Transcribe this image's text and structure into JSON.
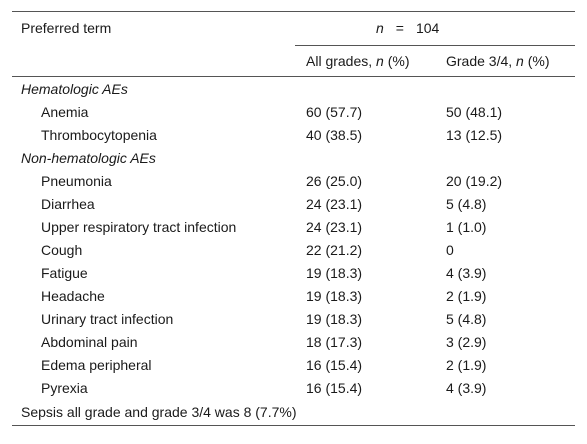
{
  "header": {
    "term_label": "Preferred term",
    "n_symbol": "n",
    "n_eq": "=",
    "n_value": "104",
    "col_all": "All grades, n (%)",
    "col_g34": "Grade 3/4, n (%)"
  },
  "sections": [
    {
      "title": "Hematologic AEs",
      "rows": [
        {
          "term": "Anemia",
          "all": "60 (57.7)",
          "g34": "50 (48.1)"
        },
        {
          "term": "Thrombocytopenia",
          "all": "40 (38.5)",
          "g34": "13 (12.5)"
        }
      ]
    },
    {
      "title": "Non-hematologic AEs",
      "rows": [
        {
          "term": "Pneumonia",
          "all": "26 (25.0)",
          "g34": "20 (19.2)"
        },
        {
          "term": "Diarrhea",
          "all": "24 (23.1)",
          "g34": "5 (4.8)"
        },
        {
          "term": "Upper respiratory tract infection",
          "all": "24 (23.1)",
          "g34": "1 (1.0)"
        },
        {
          "term": "Cough",
          "all": "22 (21.2)",
          "g34": "0"
        },
        {
          "term": "Fatigue",
          "all": "19 (18.3)",
          "g34": "4 (3.9)"
        },
        {
          "term": "Headache",
          "all": "19 (18.3)",
          "g34": "2 (1.9)"
        },
        {
          "term": "Urinary tract infection",
          "all": "19 (18.3)",
          "g34": "5 (4.8)"
        },
        {
          "term": "Abdominal pain",
          "all": "18 (17.3)",
          "g34": "3 (2.9)"
        },
        {
          "term": "Edema peripheral",
          "all": "16 (15.4)",
          "g34": "2 (1.9)"
        },
        {
          "term": "Pyrexia",
          "all": "16 (15.4)",
          "g34": "4 (3.9)"
        }
      ]
    }
  ],
  "footnote": "Sepsis all grade and grade 3/4 was 8 (7.7%)"
}
